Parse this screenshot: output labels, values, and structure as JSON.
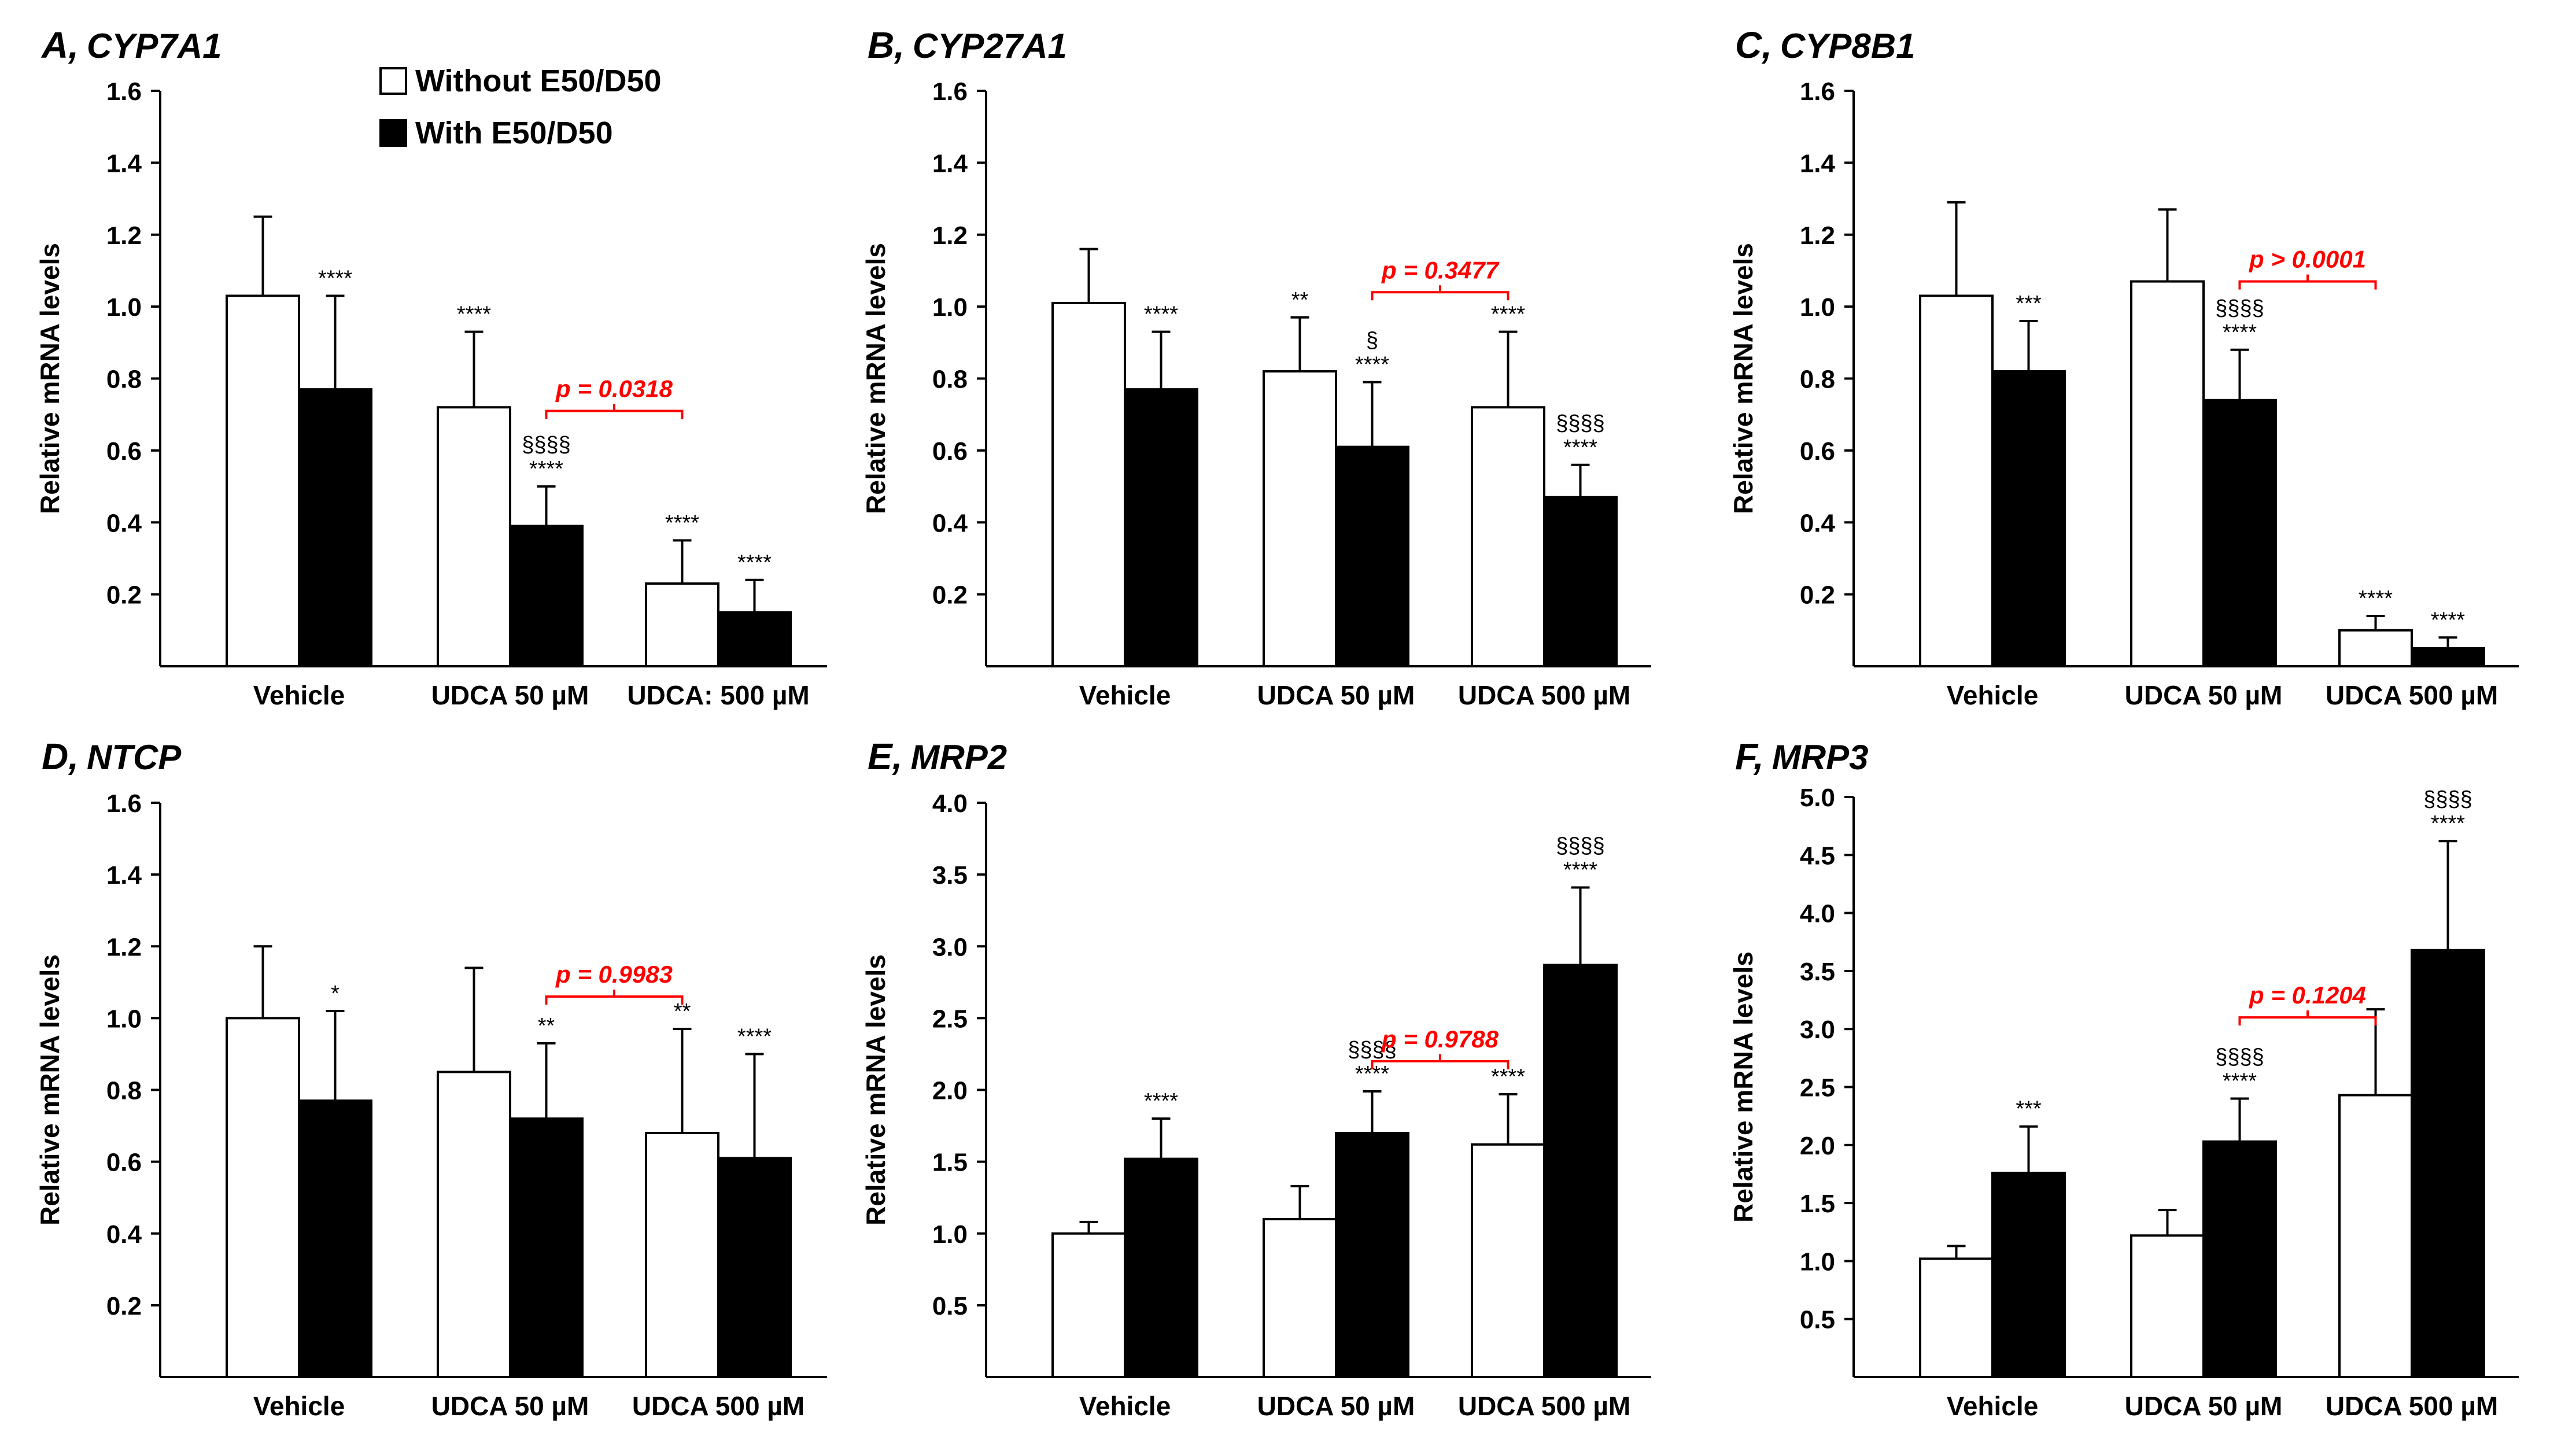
{
  "legend": {
    "without_label": "Without E50/D50",
    "with_label": "With E50/D50"
  },
  "colors": {
    "without_fill": "#ffffff",
    "with_fill": "#000000",
    "axis": "#000000",
    "pvalue": "#ff0000"
  },
  "chart_data": [
    {
      "type": "bar",
      "panel_letter": "A,",
      "gene": "CYP7A1",
      "ylabel": "Relative mRNA levels",
      "ylim": [
        0,
        1.6
      ],
      "yticks": [
        "0.2",
        "0.4",
        "0.6",
        "0.8",
        "1.0",
        "1.2",
        "1.4",
        "1.6"
      ],
      "categories": [
        "Vehicle",
        "UDCA 50 µM",
        "UDCA: 500 µM"
      ],
      "series": [
        {
          "name": "Without E50/D50",
          "values": [
            1.03,
            0.72,
            0.23
          ],
          "errors": [
            0.22,
            0.21,
            0.12
          ],
          "annotations": [
            [],
            [
              "****"
            ],
            [
              "****"
            ]
          ]
        },
        {
          "name": "With E50/D50",
          "values": [
            0.77,
            0.39,
            0.15
          ],
          "errors": [
            0.26,
            0.11,
            0.09
          ],
          "annotations": [
            [
              "****"
            ],
            [
              "§§§§",
              "****"
            ],
            [
              "****"
            ]
          ]
        }
      ],
      "pvalue": {
        "label": "p = 0.0318",
        "from_group": 1,
        "to_group": 2,
        "y": 0.71
      }
    },
    {
      "type": "bar",
      "panel_letter": "B,",
      "gene": "CYP27A1",
      "ylabel": "Relative mRNA levels",
      "ylim": [
        0,
        1.6
      ],
      "yticks": [
        "0.2",
        "0.4",
        "0.6",
        "0.8",
        "1.0",
        "1.2",
        "1.4",
        "1.6"
      ],
      "categories": [
        "Vehicle",
        "UDCA 50 µM",
        "UDCA 500 µM"
      ],
      "series": [
        {
          "name": "Without E50/D50",
          "values": [
            1.01,
            0.82,
            0.72
          ],
          "errors": [
            0.15,
            0.15,
            0.21
          ],
          "annotations": [
            [],
            [
              "**"
            ],
            [
              "****"
            ]
          ]
        },
        {
          "name": "With E50/D50",
          "values": [
            0.77,
            0.61,
            0.47
          ],
          "errors": [
            0.16,
            0.18,
            0.09
          ],
          "annotations": [
            [
              "****"
            ],
            [
              "§",
              "****"
            ],
            [
              "§§§§",
              "****"
            ]
          ]
        }
      ],
      "pvalue": {
        "label": "p = 0.3477",
        "from_group": 1,
        "to_group": 2,
        "y": 1.04
      }
    },
    {
      "type": "bar",
      "panel_letter": "C,",
      "gene": "CYP8B1",
      "ylabel": "Relative mRNA levels",
      "ylim": [
        0,
        1.6
      ],
      "yticks": [
        "0.2",
        "0.4",
        "0.6",
        "0.8",
        "1.0",
        "1.2",
        "1.4",
        "1.6"
      ],
      "categories": [
        "Vehicle",
        "UDCA 50 µM",
        "UDCA 500 µM"
      ],
      "series": [
        {
          "name": "Without E50/D50",
          "values": [
            1.03,
            1.07,
            0.1
          ],
          "errors": [
            0.26,
            0.2,
            0.04
          ],
          "annotations": [
            [],
            [],
            [
              "****"
            ]
          ]
        },
        {
          "name": "With E50/D50",
          "values": [
            0.82,
            0.74,
            0.05
          ],
          "errors": [
            0.14,
            0.14,
            0.03
          ],
          "annotations": [
            [
              "***"
            ],
            [
              "§§§§",
              "****"
            ],
            [
              "****"
            ]
          ]
        }
      ],
      "pvalue": {
        "label": "p > 0.0001",
        "from_group": 1,
        "to_group": 2,
        "y": 1.07
      }
    },
    {
      "type": "bar",
      "panel_letter": "D,",
      "gene": "NTCP",
      "ylabel": "Relative mRNA levels",
      "ylim": [
        0,
        1.6
      ],
      "yticks": [
        "0.2",
        "0.4",
        "0.6",
        "0.8",
        "1.0",
        "1.2",
        "1.4",
        "1.6"
      ],
      "categories": [
        "Vehicle",
        "UDCA 50 µM",
        "UDCA 500 µM"
      ],
      "series": [
        {
          "name": "Without E50/D50",
          "values": [
            1.0,
            0.85,
            0.68
          ],
          "errors": [
            0.2,
            0.29,
            0.29
          ],
          "annotations": [
            [],
            [],
            [
              "**"
            ]
          ]
        },
        {
          "name": "With E50/D50",
          "values": [
            0.77,
            0.72,
            0.61
          ],
          "errors": [
            0.25,
            0.21,
            0.29
          ],
          "annotations": [
            [
              "*"
            ],
            [
              "**"
            ],
            [
              "****"
            ]
          ]
        }
      ],
      "pvalue": {
        "label": "p = 0.9983",
        "from_group": 1,
        "to_group": 2,
        "y": 1.06
      }
    },
    {
      "type": "bar",
      "panel_letter": "E,",
      "gene": "MRP2",
      "ylabel": "Relative mRNA levels",
      "ylim": [
        0,
        4.0
      ],
      "yticks": [
        "0.5",
        "1.0",
        "1.5",
        "2.0",
        "2.5",
        "3.0",
        "3.5",
        "4.0"
      ],
      "categories": [
        "Vehicle",
        "UDCA 50 µM",
        "UDCA 500 µM"
      ],
      "series": [
        {
          "name": "Without E50/D50",
          "values": [
            1.0,
            1.1,
            1.62
          ],
          "errors": [
            0.08,
            0.23,
            0.35
          ],
          "annotations": [
            [],
            [],
            [
              "****"
            ]
          ]
        },
        {
          "name": "With E50/D50",
          "values": [
            1.52,
            1.7,
            2.87
          ],
          "errors": [
            0.28,
            0.29,
            0.54
          ],
          "annotations": [
            [
              "****"
            ],
            [
              "§§§§",
              "****"
            ],
            [
              "§§§§",
              "****"
            ]
          ]
        }
      ],
      "pvalue": {
        "label": "p = 0.9788",
        "from_group": 1,
        "to_group": 2,
        "y": 2.2
      }
    },
    {
      "type": "bar",
      "panel_letter": "F,",
      "gene": "MRP3",
      "ylabel": "Relative mRNA levels",
      "ylim": [
        0,
        5.0
      ],
      "yticks": [
        "0.5",
        "1.0",
        "1.5",
        "2.0",
        "2.5",
        "3.0",
        "3.5",
        "4.0",
        "4.5",
        "5.0"
      ],
      "categories": [
        "Vehicle",
        "UDCA 50 µM",
        "UDCA 500 µM"
      ],
      "series": [
        {
          "name": "Without E50/D50",
          "values": [
            1.02,
            1.22,
            2.43
          ],
          "errors": [
            0.11,
            0.22,
            0.74
          ],
          "annotations": [
            [],
            [],
            []
          ]
        },
        {
          "name": "With E50/D50",
          "values": [
            1.76,
            2.03,
            3.68
          ],
          "errors": [
            0.4,
            0.37,
            0.94
          ],
          "annotations": [
            [
              "***"
            ],
            [
              "§§§§",
              "****"
            ],
            [
              "§§§§",
              "****"
            ]
          ]
        }
      ],
      "pvalue": {
        "label": "p = 0.1204",
        "from_group": 1,
        "to_group": 2,
        "y": 3.1
      }
    }
  ]
}
